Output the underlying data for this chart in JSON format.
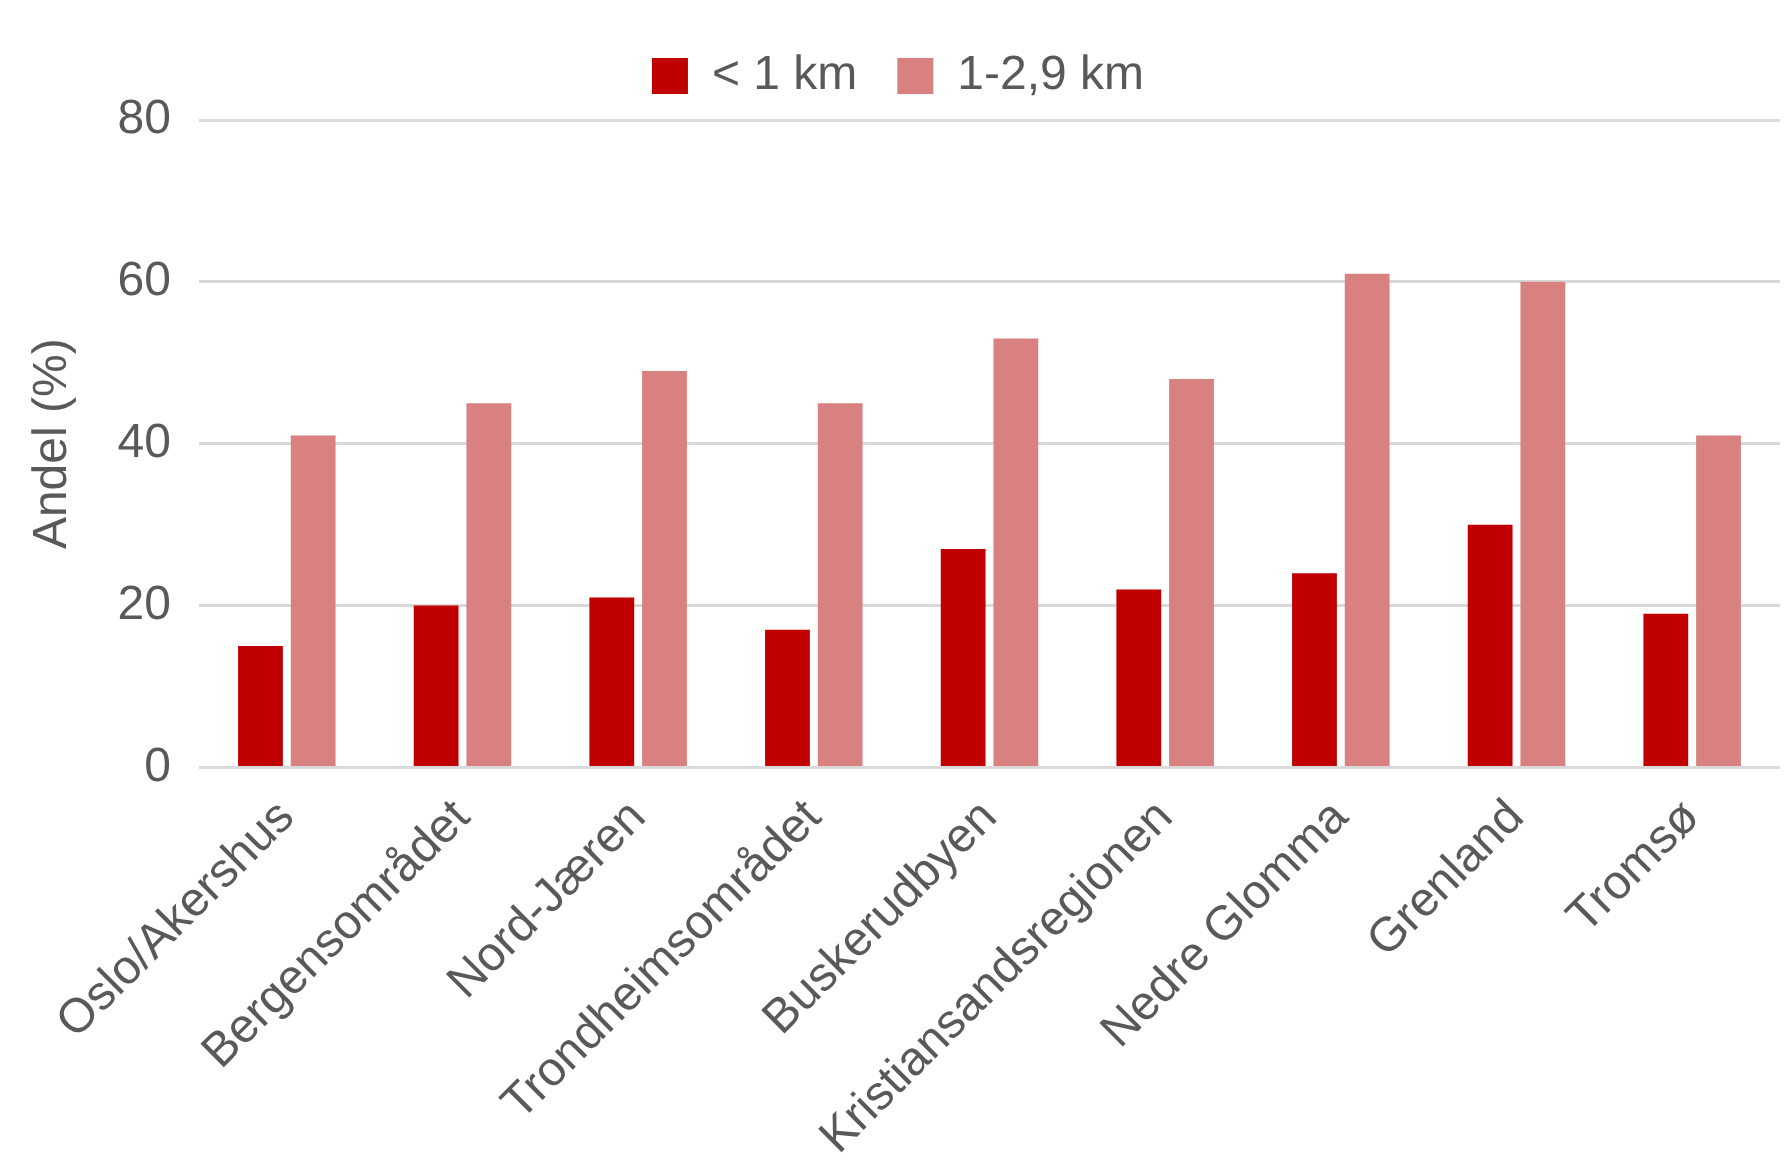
{
  "chart_data": {
    "type": "bar",
    "ylabel": "Andel (%)",
    "categories": [
      "Oslo/Akershus",
      "Bergensområdet",
      "Nord-Jæren",
      "Trondheimsområdet",
      "Buskerudbyen",
      "Kristiansandsregionen",
      "Nedre Glomma",
      "Grenland",
      "Tromsø"
    ],
    "series": [
      {
        "name": "< 1 km",
        "color": "#c00000",
        "values": [
          15,
          20,
          21,
          17,
          27,
          22,
          24,
          30,
          19
        ]
      },
      {
        "name": "1-2,9 km",
        "color": "#d98080",
        "values": [
          41,
          45,
          49,
          45,
          53,
          48,
          61,
          60,
          41
        ]
      }
    ],
    "ylim": [
      0,
      80
    ],
    "yticks": [
      0,
      20,
      40,
      60,
      80
    ],
    "grid": "y",
    "legend": "top"
  }
}
